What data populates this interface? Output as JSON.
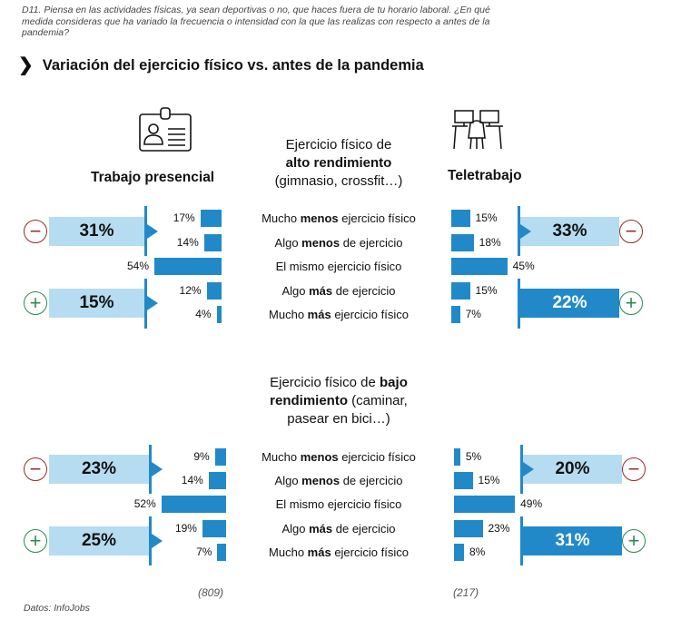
{
  "question": "D11. Piensa en las actividades físicas, ya sean deportivas o no, que haces fuera de tu horario laboral. ¿En qué medida consideras que ha variado la frecuencia o intensidad con la que las realizas con respecto a antes de la pandemia?",
  "title": "Variación del ejercicio físico vs. antes de la pandemia",
  "icons": {
    "title": "chevron-right-icon",
    "presencial": "id-badge-icon",
    "teletrabajo": "desks-chair-icon",
    "less": "minus-circle-icon",
    "more": "plus-circle-icon"
  },
  "colors": {
    "bar": "#2289c9",
    "light_box": "#b6dcf1",
    "minus": "#9b2a2a",
    "plus": "#2d8a52"
  },
  "columns": {
    "left": "Trabajo presencial",
    "right": "Teletrabajo"
  },
  "sample_sizes": {
    "left": "(809)",
    "right": "(217)"
  },
  "source": "Datos: InfoJobs",
  "chart_data": [
    {
      "type": "bar",
      "title_parts": {
        "pre": "Ejercicio físico de",
        "bold": "alto rendimiento",
        "post": "(gimnasio, crossfit…)"
      },
      "categories": [
        {
          "pre": "Mucho ",
          "bold": "menos",
          "post": " ejercicio físico"
        },
        {
          "pre": "Algo ",
          "bold": "menos",
          "post": " de ejercicio"
        },
        {
          "pre": "El mismo ejercicio físico",
          "bold": "",
          "post": ""
        },
        {
          "pre": "Algo ",
          "bold": "más",
          "post": " de ejercicio"
        },
        {
          "pre": "Mucho ",
          "bold": "más",
          "post": " ejercicio físico"
        }
      ],
      "series": [
        {
          "name": "Trabajo presencial",
          "values": [
            17,
            14,
            54,
            12,
            4
          ],
          "labels": [
            "17%",
            "14%",
            "54%",
            "12%",
            "4%"
          ],
          "summary": {
            "less": "31%",
            "more": "15%"
          }
        },
        {
          "name": "Teletrabajo",
          "values": [
            15,
            18,
            45,
            15,
            7
          ],
          "labels": [
            "15%",
            "18%",
            "45%",
            "15%",
            "7%"
          ],
          "summary": {
            "less": "33%",
            "more": "22%"
          }
        }
      ],
      "unit": "%"
    },
    {
      "type": "bar",
      "title_parts": {
        "pre": "Ejercicio físico de ",
        "bold1": "bajo",
        "bold2": "rendimiento",
        "post": " (caminar,",
        "post2": "pasear en bici…)"
      },
      "categories": [
        {
          "pre": "Mucho ",
          "bold": "menos",
          "post": " ejercicio físico"
        },
        {
          "pre": "Algo ",
          "bold": "menos",
          "post": " de ejercicio"
        },
        {
          "pre": "El mismo ejercicio físico",
          "bold": "",
          "post": ""
        },
        {
          "pre": "Algo ",
          "bold": "más",
          "post": " de ejercicio"
        },
        {
          "pre": "Mucho ",
          "bold": "más",
          "post": " ejercicio físico"
        }
      ],
      "series": [
        {
          "name": "Trabajo presencial",
          "values": [
            9,
            14,
            52,
            19,
            7
          ],
          "labels": [
            "9%",
            "14%",
            "52%",
            "19%",
            "7%"
          ],
          "summary": {
            "less": "23%",
            "more": "25%"
          }
        },
        {
          "name": "Teletrabajo",
          "values": [
            5,
            15,
            49,
            23,
            8
          ],
          "labels": [
            "5%",
            "15%",
            "49%",
            "23%",
            "8%"
          ],
          "summary": {
            "less": "20%",
            "more": "31%"
          }
        }
      ],
      "unit": "%"
    }
  ]
}
